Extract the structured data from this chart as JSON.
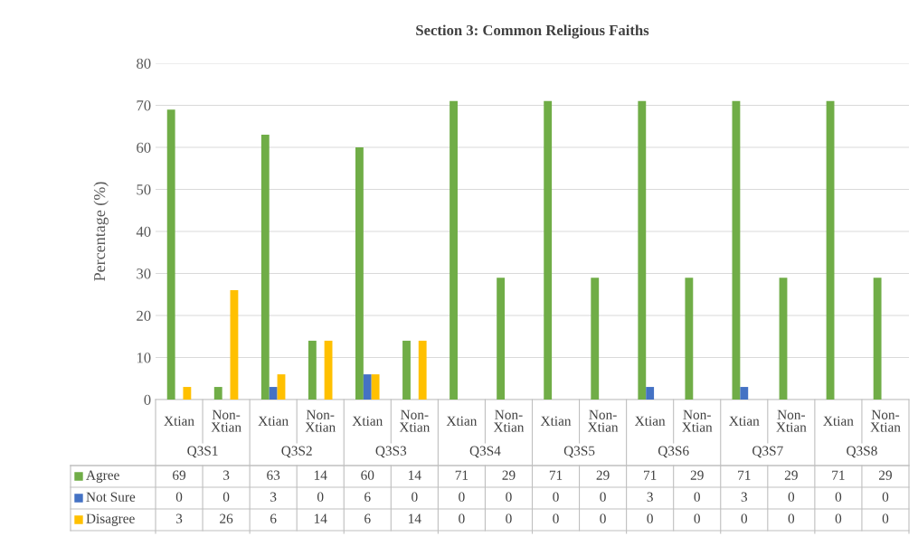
{
  "chart_data": {
    "type": "bar",
    "title": "Section 3: Common Religious Faiths",
    "ylabel": "Percentage (%)",
    "categories": [
      "Xtian",
      "Non-\nXtian",
      "Xtian",
      "Non-\nXtian",
      "Xtian",
      "Non-\nXtian",
      "Xtian",
      "Non-\nXtian",
      "Xtian",
      "Non-\nXtian",
      "Xtian",
      "Non-\nXtian",
      "Xtian",
      "Non-\nXtian",
      "Xtian",
      "Non-\nXtian"
    ],
    "annotations": [
      "Q3S1",
      "Q3S2",
      "Q3S3",
      "Q3S4",
      "Q3S5",
      "Q3S6",
      "Q3S7",
      "Q3S8"
    ],
    "series": [
      {
        "name": "Agree",
        "color": "#70ad47",
        "values": [
          69,
          3,
          63,
          14,
          60,
          14,
          71,
          29,
          71,
          29,
          71,
          29,
          71,
          29,
          71,
          29
        ]
      },
      {
        "name": "Not Sure",
        "color": "#4472c4",
        "values": [
          0,
          0,
          3,
          0,
          6,
          0,
          0,
          0,
          0,
          0,
          3,
          0,
          3,
          0,
          0,
          0
        ]
      },
      {
        "name": "Disagree",
        "color": "#ffc000",
        "values": [
          3,
          26,
          6,
          14,
          6,
          14,
          0,
          0,
          0,
          0,
          0,
          0,
          0,
          0,
          0,
          0
        ]
      }
    ],
    "ylim": [
      0,
      80
    ],
    "yticks": [
      0,
      10,
      20,
      30,
      40,
      50,
      60,
      70,
      80
    ],
    "grid": "y",
    "data_labels": true,
    "legend": "bottom"
  }
}
